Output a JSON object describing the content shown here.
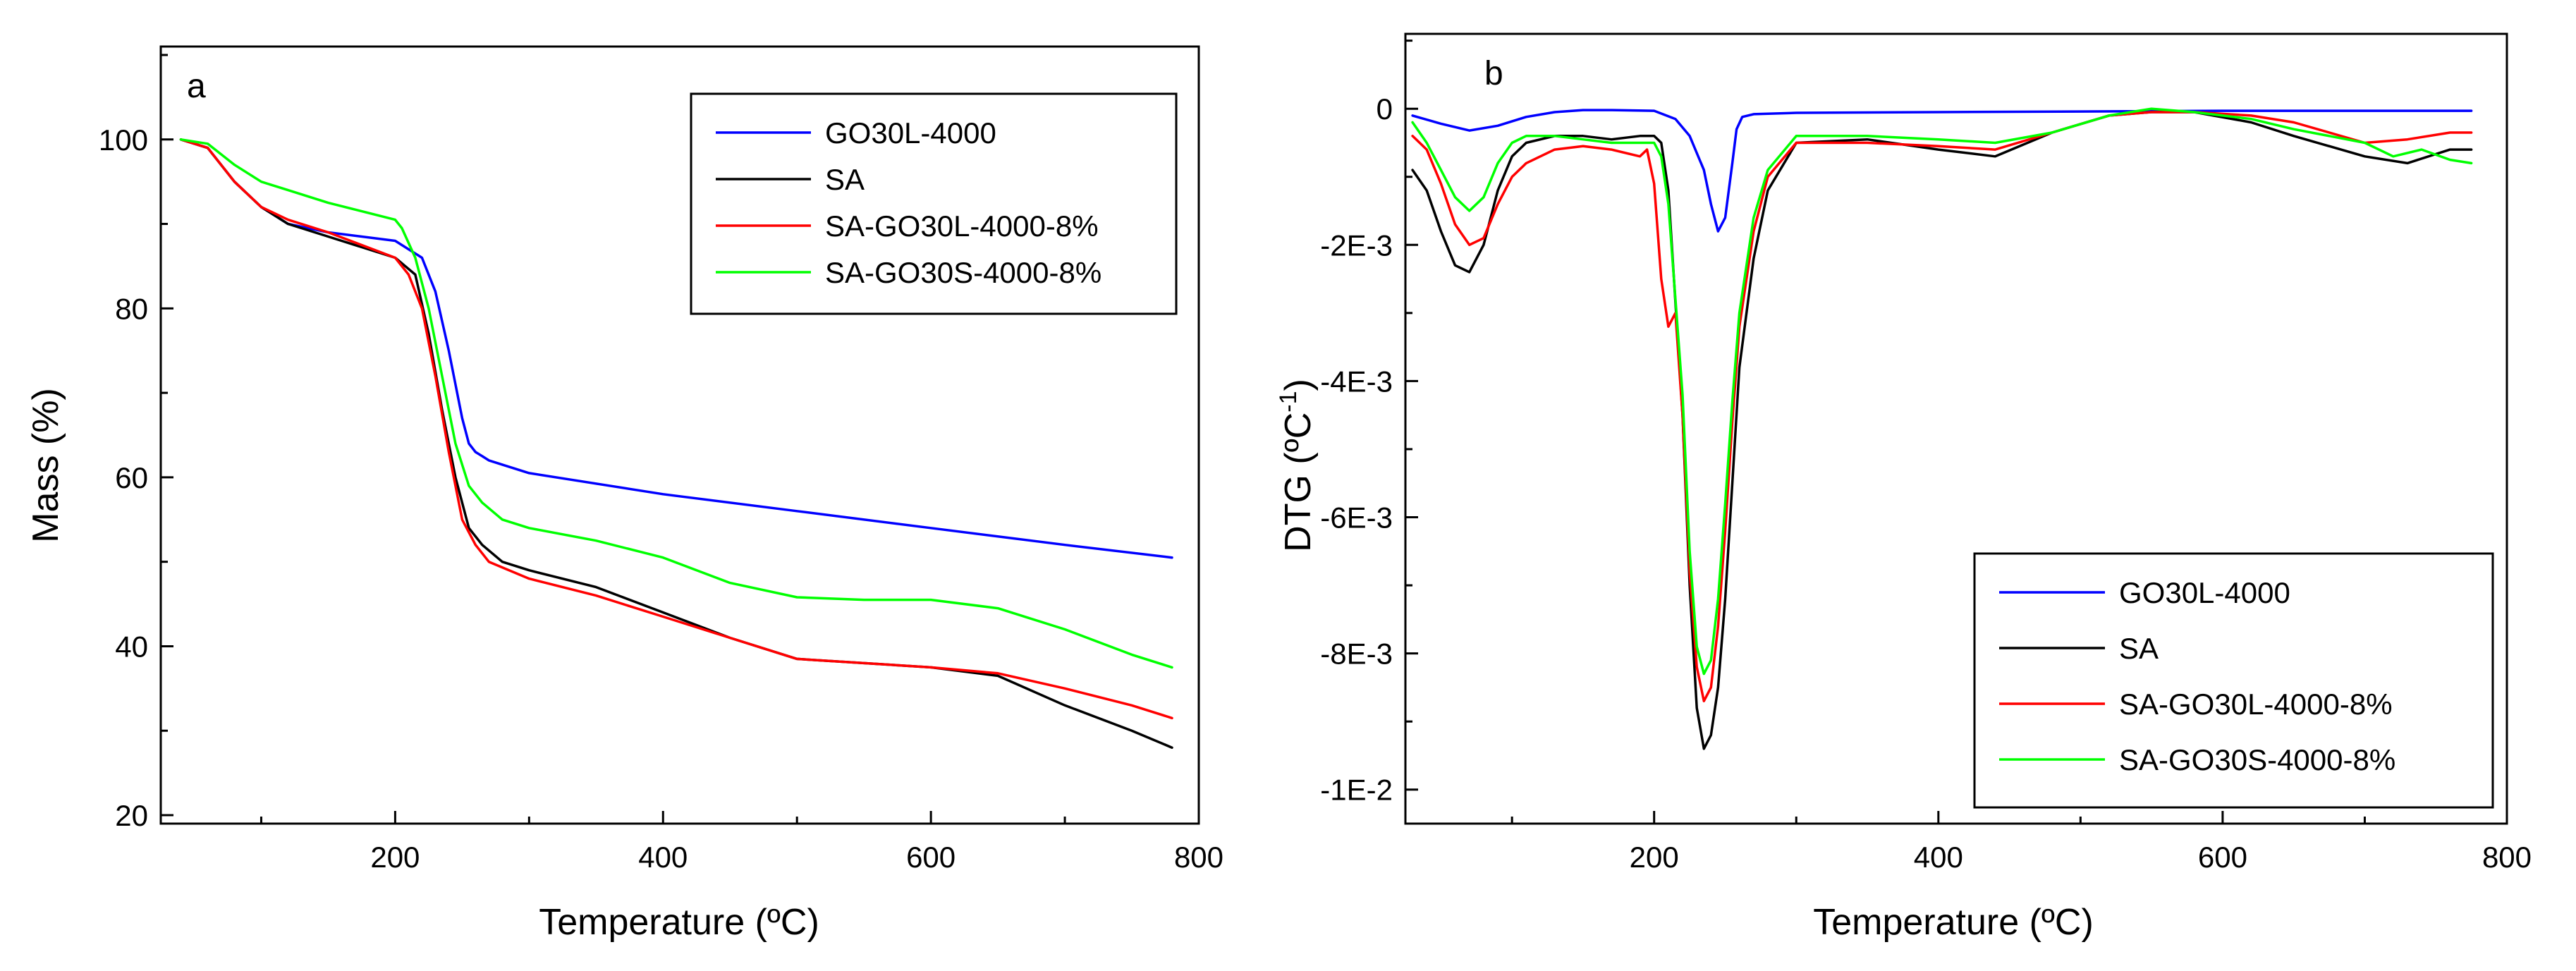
{
  "chart_data": [
    {
      "type": "line",
      "panel_label": "a",
      "xlabel": "Temperature (ºC)",
      "ylabel": "Mass (%)",
      "xlim": [
        25,
        800
      ],
      "ylim": [
        19,
        111
      ],
      "xticks": [
        200,
        400,
        600,
        800
      ],
      "yticks": [
        20,
        40,
        60,
        80,
        100
      ],
      "ytick_labels": [
        "20",
        "40",
        "60",
        "80",
        "100"
      ],
      "grid": false,
      "legend_position": "top-right",
      "series": [
        {
          "name": "GO30L-4000",
          "color": "#0000ff",
          "x": [
            40,
            60,
            80,
            100,
            120,
            150,
            200,
            220,
            230,
            240,
            250,
            255,
            260,
            265,
            270,
            300,
            400,
            500,
            600,
            700,
            780
          ],
          "y": [
            100,
            99,
            95,
            92,
            90,
            89,
            88,
            86,
            82,
            75,
            67,
            64,
            63,
            62.5,
            62,
            60.5,
            58,
            56,
            54,
            52,
            50.5
          ]
        },
        {
          "name": "SA",
          "color": "#000000",
          "x": [
            40,
            60,
            80,
            100,
            120,
            150,
            200,
            215,
            225,
            235,
            245,
            255,
            265,
            280,
            300,
            350,
            400,
            450,
            500,
            550,
            600,
            650,
            700,
            750,
            780
          ],
          "y": [
            100,
            99,
            95,
            92,
            90,
            88.5,
            86,
            84,
            77,
            68,
            60,
            54,
            52,
            50,
            49,
            47,
            44,
            41,
            38.5,
            38,
            37.5,
            36.5,
            33,
            30,
            28
          ]
        },
        {
          "name": "SA-GO30L-4000-8%",
          "color": "#ff0000",
          "x": [
            40,
            60,
            80,
            100,
            120,
            150,
            200,
            210,
            220,
            230,
            240,
            250,
            260,
            270,
            300,
            350,
            400,
            450,
            500,
            550,
            600,
            650,
            700,
            750,
            780
          ],
          "y": [
            100,
            99,
            95,
            92,
            90.5,
            89,
            86,
            84,
            80,
            72,
            63,
            55,
            52,
            50,
            48,
            46,
            43.5,
            41,
            38.5,
            38,
            37.5,
            36.8,
            35,
            33,
            31.5
          ]
        },
        {
          "name": "SA-GO30S-4000-8%",
          "color": "#00ff00",
          "x": [
            40,
            60,
            80,
            100,
            120,
            150,
            200,
            205,
            215,
            225,
            235,
            245,
            255,
            265,
            280,
            300,
            350,
            400,
            450,
            500,
            550,
            600,
            650,
            700,
            750,
            780
          ],
          "y": [
            100,
            99.5,
            97,
            95,
            94,
            92.5,
            90.5,
            89.5,
            86,
            80,
            72,
            64,
            59,
            57,
            55,
            54,
            52.5,
            50.5,
            47.5,
            45.8,
            45.5,
            45.5,
            44.5,
            42,
            39,
            37.5
          ]
        }
      ]
    },
    {
      "type": "line",
      "panel_label": "b",
      "xlabel": "Temperature (ºC)",
      "ylabel": "DTG (ºC",
      "ylabel_superscript": "-1",
      "ylabel_suffix": ")",
      "xlim": [
        25,
        800
      ],
      "ylim": [
        -0.0105,
        0.0011
      ],
      "xticks": [
        200,
        400,
        600,
        800
      ],
      "yticks": [
        0,
        -0.002,
        -0.004,
        -0.006,
        -0.008,
        -0.01
      ],
      "ytick_labels": [
        "0",
        "-2E-3",
        "-4E-3",
        "-6E-3",
        "-8E-3",
        "-1E-2"
      ],
      "grid": false,
      "legend_position": "bottom-right",
      "series": [
        {
          "name": "GO30L-4000",
          "color": "#0000ff",
          "x": [
            30,
            50,
            70,
            90,
            110,
            130,
            150,
            170,
            200,
            215,
            225,
            235,
            240,
            245,
            250,
            255,
            258,
            262,
            270,
            300,
            400,
            500,
            600,
            700,
            775
          ],
          "y": [
            -0.0001,
            -0.00022,
            -0.00032,
            -0.00025,
            -0.00012,
            -5e-05,
            -2e-05,
            -2e-05,
            -3e-05,
            -0.00015,
            -0.0004,
            -0.0009,
            -0.0014,
            -0.0018,
            -0.0016,
            -0.0008,
            -0.0003,
            -0.00012,
            -8e-05,
            -6e-05,
            -5e-05,
            -4e-05,
            -3e-05,
            -3e-05,
            -3e-05
          ]
        },
        {
          "name": "SA",
          "color": "#000000",
          "x": [
            30,
            40,
            50,
            60,
            70,
            80,
            90,
            100,
            110,
            130,
            150,
            170,
            190,
            200,
            205,
            210,
            220,
            225,
            230,
            235,
            240,
            245,
            250,
            255,
            260,
            270,
            280,
            300,
            350,
            400,
            440,
            480,
            520,
            550,
            580,
            620,
            650,
            700,
            730,
            760,
            775
          ],
          "y": [
            -0.0009,
            -0.0012,
            -0.0018,
            -0.0023,
            -0.0024,
            -0.002,
            -0.0012,
            -0.0007,
            -0.0005,
            -0.0004,
            -0.0004,
            -0.00045,
            -0.0004,
            -0.0004,
            -0.0005,
            -0.0012,
            -0.0045,
            -0.007,
            -0.0088,
            -0.0094,
            -0.0092,
            -0.0085,
            -0.0072,
            -0.0055,
            -0.0038,
            -0.0022,
            -0.0012,
            -0.0005,
            -0.00045,
            -0.0006,
            -0.0007,
            -0.00035,
            -0.0001,
            -5e-05,
            -5e-05,
            -0.0002,
            -0.0004,
            -0.0007,
            -0.0008,
            -0.0006,
            -0.0006
          ]
        },
        {
          "name": "SA-GO30L-4000-8%",
          "color": "#ff0000",
          "x": [
            30,
            40,
            50,
            60,
            70,
            80,
            90,
            100,
            110,
            130,
            150,
            170,
            190,
            195,
            200,
            205,
            210,
            215,
            220,
            225,
            230,
            235,
            240,
            245,
            250,
            255,
            260,
            270,
            280,
            300,
            350,
            400,
            440,
            480,
            520,
            550,
            580,
            620,
            650,
            700,
            730,
            760,
            775
          ],
          "y": [
            -0.0004,
            -0.0006,
            -0.0011,
            -0.0017,
            -0.002,
            -0.0019,
            -0.0014,
            -0.001,
            -0.0008,
            -0.0006,
            -0.00055,
            -0.0006,
            -0.0007,
            -0.0006,
            -0.0011,
            -0.0025,
            -0.0032,
            -0.003,
            -0.0045,
            -0.0068,
            -0.0082,
            -0.0087,
            -0.0085,
            -0.0076,
            -0.0062,
            -0.0046,
            -0.0032,
            -0.0018,
            -0.001,
            -0.0005,
            -0.0005,
            -0.00055,
            -0.0006,
            -0.00035,
            -0.0001,
            -5e-05,
            -5e-05,
            -0.0001,
            -0.0002,
            -0.0005,
            -0.00045,
            -0.00035,
            -0.00035
          ]
        },
        {
          "name": "SA-GO30S-4000-8%",
          "color": "#00ff00",
          "x": [
            30,
            40,
            50,
            60,
            70,
            80,
            90,
            100,
            110,
            130,
            150,
            170,
            190,
            200,
            205,
            210,
            220,
            225,
            230,
            235,
            240,
            245,
            250,
            255,
            260,
            270,
            280,
            300,
            350,
            400,
            440,
            480,
            520,
            550,
            580,
            620,
            650,
            700,
            720,
            740,
            760,
            775
          ],
          "y": [
            -0.0002,
            -0.0005,
            -0.0009,
            -0.0013,
            -0.0015,
            -0.0013,
            -0.0008,
            -0.0005,
            -0.0004,
            -0.0004,
            -0.00045,
            -0.0005,
            -0.0005,
            -0.0005,
            -0.0007,
            -0.0014,
            -0.0042,
            -0.0065,
            -0.0079,
            -0.0083,
            -0.0081,
            -0.0072,
            -0.0058,
            -0.0043,
            -0.003,
            -0.0016,
            -0.0009,
            -0.0004,
            -0.0004,
            -0.00045,
            -0.0005,
            -0.00035,
            -0.0001,
            0,
            -5e-05,
            -0.00015,
            -0.0003,
            -0.0005,
            -0.0007,
            -0.0006,
            -0.00075,
            -0.0008
          ]
        }
      ]
    }
  ]
}
